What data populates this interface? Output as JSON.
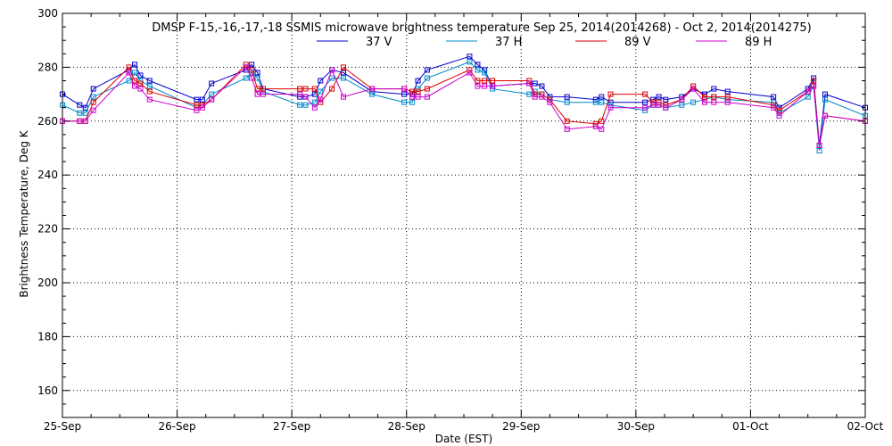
{
  "chart_data": {
    "type": "line",
    "title": "DMSP F-15,-16,-17,-18 SSMIS microwave brightness temperature Sep 25, 2014(2014268) - Oct  2, 2014(2014275)",
    "xlabel": "Date (EST)",
    "ylabel": "Brightness Temperature, Deg K",
    "ylim": [
      150,
      300
    ],
    "xlim": [
      0,
      7
    ],
    "yticks": [
      160,
      180,
      200,
      220,
      240,
      260,
      280,
      300
    ],
    "xtick_positions": [
      0,
      1,
      2,
      3,
      4,
      5,
      6,
      7
    ],
    "xtick_labels": [
      "25-Sep",
      "26-Sep",
      "27-Sep",
      "28-Sep",
      "29-Sep",
      "30-Sep",
      "01-Oct",
      "02-Oct"
    ],
    "grid": true,
    "legend_position": "top",
    "series": [
      {
        "name": "37 V",
        "color": "#0000cc",
        "x": [
          0.0,
          0.15,
          0.2,
          0.27,
          0.58,
          0.63,
          0.68,
          0.76,
          1.17,
          1.22,
          1.3,
          1.6,
          1.65,
          1.7,
          1.75,
          2.07,
          2.12,
          2.2,
          2.25,
          2.35,
          2.45,
          2.7,
          2.98,
          3.05,
          3.1,
          3.18,
          3.55,
          3.62,
          3.68,
          3.75,
          4.07,
          4.12,
          4.18,
          4.25,
          4.4,
          4.65,
          4.7,
          4.78,
          5.08,
          5.15,
          5.2,
          5.26,
          5.4,
          5.5,
          5.6,
          5.68,
          5.8,
          6.2,
          6.25,
          6.5,
          6.55,
          6.6,
          6.65,
          7.0
        ],
        "values": [
          270,
          266,
          265,
          272,
          279,
          281,
          277,
          275,
          268,
          268,
          274,
          279,
          281,
          278,
          272,
          269,
          269,
          270,
          275,
          279,
          278,
          271,
          270,
          270,
          275,
          279,
          284,
          281,
          279,
          273,
          274,
          274,
          273,
          269,
          269,
          268,
          269,
          267,
          267,
          268,
          269,
          268,
          269,
          272,
          270,
          272,
          271,
          269,
          265,
          272,
          276,
          251,
          270,
          265
        ]
      },
      {
        "name": "37 H",
        "color": "#0088cc",
        "x": [
          0.0,
          0.15,
          0.2,
          0.27,
          0.58,
          0.63,
          0.68,
          0.76,
          1.17,
          1.22,
          1.3,
          1.6,
          1.65,
          1.7,
          1.75,
          2.07,
          2.12,
          2.2,
          2.25,
          2.35,
          2.45,
          2.7,
          2.98,
          3.05,
          3.1,
          3.18,
          3.55,
          3.62,
          3.68,
          3.75,
          4.07,
          4.12,
          4.18,
          4.25,
          4.4,
          4.65,
          4.7,
          4.78,
          5.08,
          5.15,
          5.2,
          5.26,
          5.4,
          5.5,
          5.6,
          5.68,
          5.8,
          6.2,
          6.25,
          6.5,
          6.55,
          6.6,
          6.65,
          7.0
        ],
        "values": [
          266,
          263,
          263,
          269,
          275,
          278,
          275,
          273,
          265,
          266,
          270,
          276,
          278,
          276,
          271,
          266,
          266,
          267,
          271,
          276,
          276,
          270,
          267,
          267,
          272,
          276,
          282,
          279,
          278,
          272,
          270,
          271,
          270,
          268,
          267,
          267,
          267,
          266,
          264,
          266,
          266,
          265,
          266,
          267,
          268,
          269,
          268,
          267,
          263,
          269,
          273,
          249,
          268,
          262
        ]
      },
      {
        "name": "89 V",
        "color": "#dd0000",
        "x": [
          0.0,
          0.15,
          0.2,
          0.27,
          0.58,
          0.63,
          0.68,
          0.76,
          1.17,
          1.22,
          1.3,
          1.6,
          1.65,
          1.7,
          1.75,
          2.07,
          2.12,
          2.2,
          2.25,
          2.35,
          2.45,
          2.7,
          2.98,
          3.05,
          3.1,
          3.18,
          3.55,
          3.62,
          3.68,
          3.75,
          4.07,
          4.12,
          4.18,
          4.25,
          4.4,
          4.65,
          4.7,
          4.78,
          5.08,
          5.15,
          5.2,
          5.26,
          5.4,
          5.5,
          5.6,
          5.68,
          5.8,
          6.2,
          6.25,
          6.5,
          6.55,
          6.6,
          6.65,
          7.0
        ],
        "values": [
          260,
          260,
          260,
          267,
          280,
          275,
          274,
          271,
          266,
          266,
          268,
          281,
          279,
          272,
          272,
          272,
          272,
          272,
          267,
          272,
          280,
          272,
          272,
          271,
          271,
          272,
          279,
          275,
          275,
          275,
          275,
          270,
          270,
          268,
          260,
          259,
          260,
          270,
          270,
          267,
          267,
          266,
          268,
          273,
          269,
          269,
          269,
          266,
          264,
          271,
          275,
          251,
          262,
          260
        ]
      },
      {
        "name": "89 H",
        "color": "#cc00cc",
        "x": [
          0.0,
          0.15,
          0.2,
          0.27,
          0.58,
          0.63,
          0.68,
          0.76,
          1.17,
          1.22,
          1.3,
          1.6,
          1.65,
          1.7,
          1.75,
          2.07,
          2.12,
          2.2,
          2.25,
          2.35,
          2.45,
          2.7,
          2.98,
          3.05,
          3.1,
          3.18,
          3.55,
          3.62,
          3.68,
          3.75,
          4.07,
          4.12,
          4.18,
          4.25,
          4.4,
          4.65,
          4.7,
          4.78,
          5.08,
          5.15,
          5.2,
          5.26,
          5.4,
          5.5,
          5.6,
          5.68,
          5.8,
          6.2,
          6.25,
          6.5,
          6.55,
          6.6,
          6.65,
          7.0
        ],
        "values": [
          260,
          260,
          260,
          264,
          278,
          273,
          272,
          268,
          264,
          265,
          268,
          280,
          276,
          270,
          270,
          270,
          269,
          265,
          268,
          279,
          269,
          272,
          272,
          269,
          269,
          269,
          278,
          273,
          273,
          273,
          274,
          269,
          269,
          267,
          257,
          258,
          257,
          265,
          265,
          266,
          266,
          265,
          268,
          272,
          267,
          267,
          267,
          265,
          262,
          271,
          273,
          251,
          262,
          260
        ]
      }
    ]
  }
}
